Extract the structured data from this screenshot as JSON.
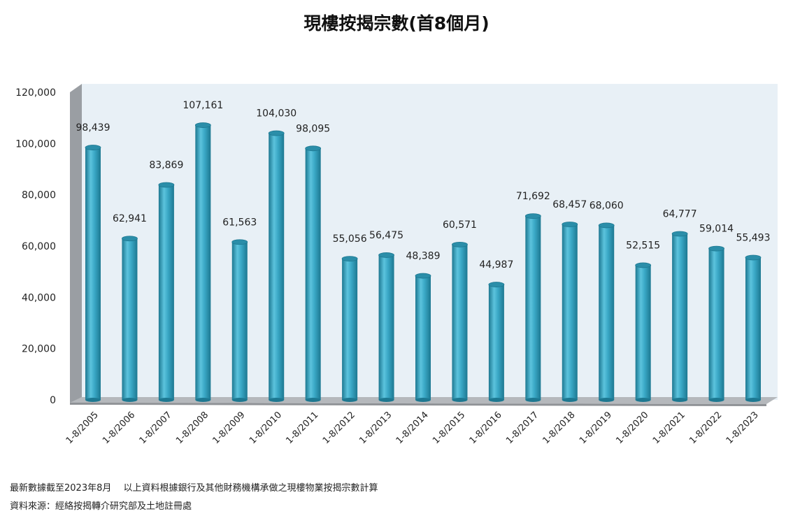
{
  "chart_data": {
    "type": "bar",
    "title": "現樓按揭宗數(首8個月)",
    "categories": [
      "1-8/2005",
      "1-8/2006",
      "1-8/2007",
      "1-8/2008",
      "1-8/2009",
      "1-8/2010",
      "1-8/2011",
      "1-8/2012",
      "1-8/2013",
      "1-8/2014",
      "1-8/2015",
      "1-8/2016",
      "1-8/2017",
      "1-8/2018",
      "1-8/2019",
      "1-8/2020",
      "1-8/2021",
      "1-8/2022",
      "1-8/2023"
    ],
    "values": [
      98439,
      62941,
      83869,
      107161,
      61563,
      104030,
      98095,
      55056,
      56475,
      48389,
      60571,
      44987,
      71692,
      68457,
      68060,
      52515,
      64777,
      59014,
      55493
    ],
    "data_labels": [
      "98,439",
      "62,941",
      "83,869",
      "107,161",
      "61,563",
      "104,030",
      "98,095",
      "55,056",
      "56,475",
      "48,389",
      "60,571",
      "44,987",
      "71,692",
      "68,457",
      "68,060",
      "52,515",
      "64,777",
      "59,014",
      "55,493"
    ],
    "yticks": [
      "0",
      "20,000",
      "40,000",
      "60,000",
      "80,000",
      "100,000",
      "120,000"
    ],
    "ylim": [
      0,
      120000
    ],
    "grid": false,
    "style": "3d-cylinder",
    "colors": {
      "bar": "#3aa8c6",
      "bar_dark": "#1d7891",
      "wall": "#e8f0f6",
      "side_wall": "#9a9ea3",
      "floor": "#b5b8bc"
    }
  },
  "footer": {
    "note": "最新數據截至2023年8月　 以上資料根據銀行及其他財務機構承做之現樓物業按揭宗數計算",
    "source": "資料來源：經絡按揭轉介研究部及土地註冊處"
  }
}
